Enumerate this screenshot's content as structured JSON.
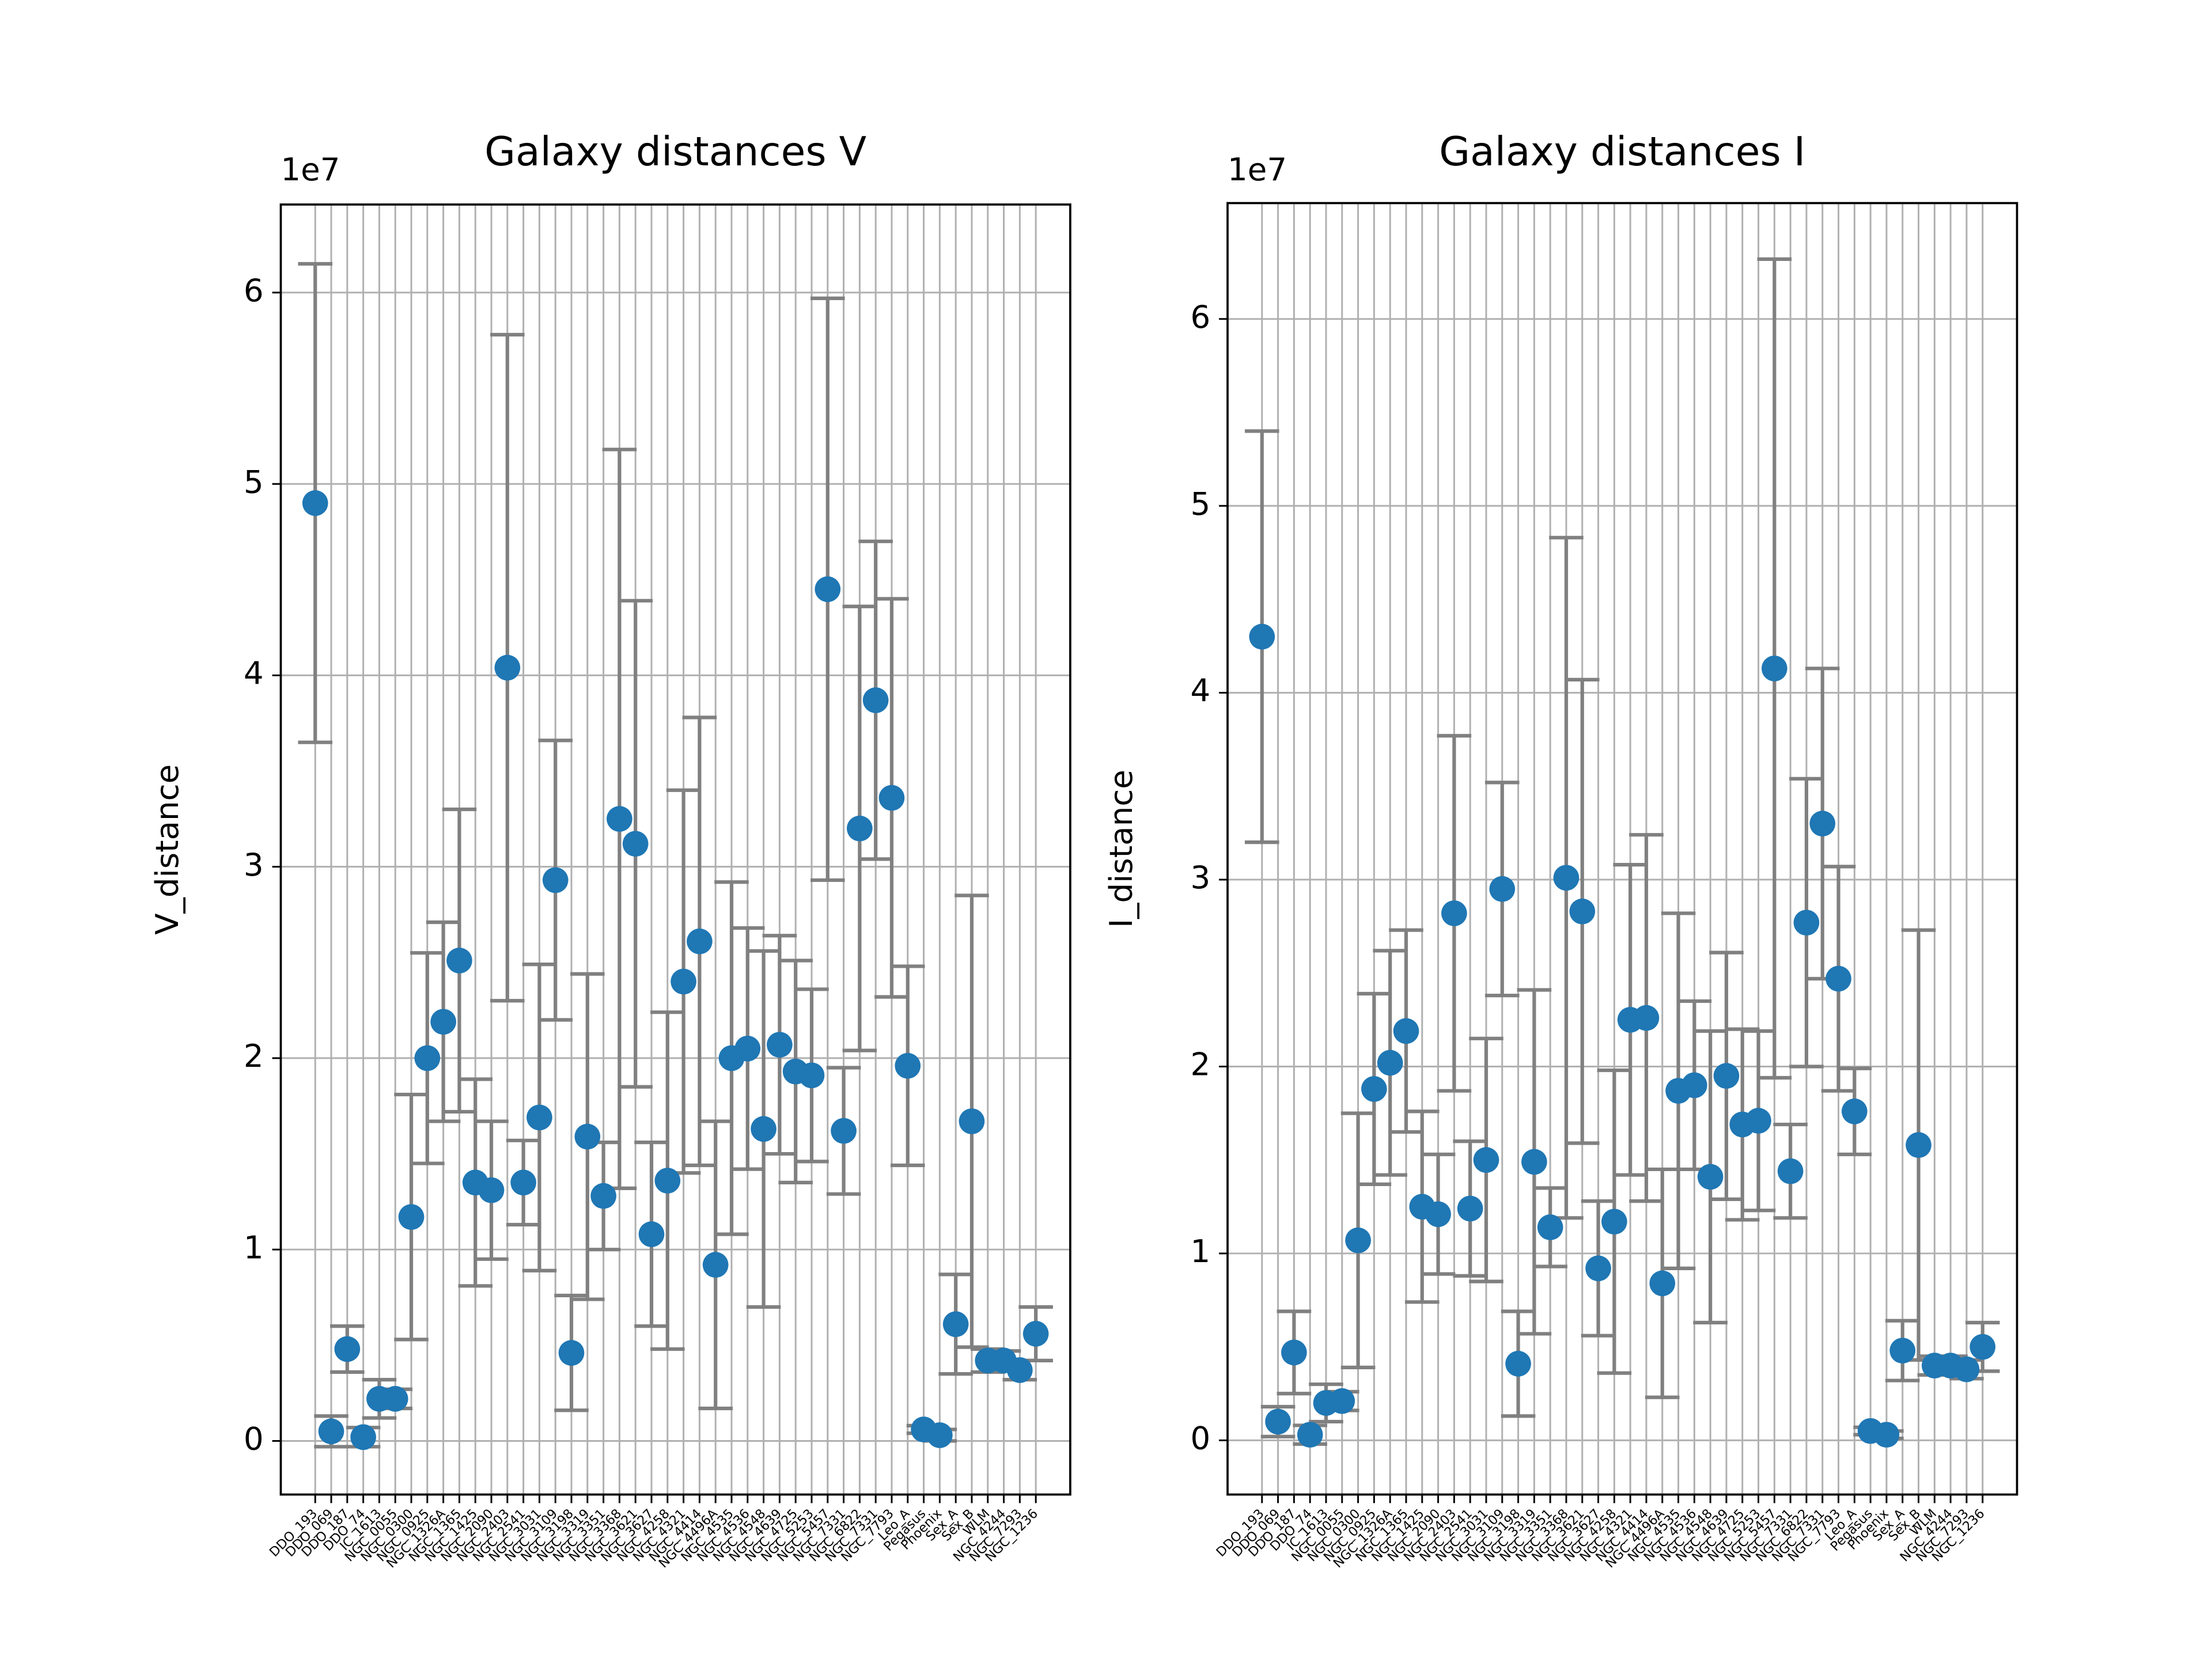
{
  "chart_data": [
    {
      "type": "errorbar",
      "title": "Galaxy distances V",
      "ylabel": "V_distance",
      "offset_label": "1e7",
      "categories": [
        "DDO_193",
        "DDO_069",
        "DDO_187",
        "DDO_74",
        "IC_1613",
        "NGC_0055",
        "NGC_0300",
        "NGC_0925",
        "NGC_1326A",
        "NGC_1365",
        "NGC_1425",
        "NGC_2090",
        "NGC_2403",
        "NGC_2541",
        "NGC_3031",
        "NGC_3109",
        "NGC_3198",
        "NGC_3319",
        "NGC_3351",
        "NGC_3368",
        "NGC_3621",
        "NGC_3627",
        "NGC_4258",
        "NGC_4321",
        "NGC_4414",
        "NGC_4496A",
        "NGC_4535",
        "NGC_4536",
        "NGC_4548",
        "NGC_4639",
        "NGC_4725",
        "NGC_5253",
        "NGC_5457",
        "NGC_7331",
        "NGC_6822",
        "NGC_7331",
        "NGC_7793",
        "Leo_A",
        "Pegasus",
        "Phoenix",
        "Sex_A",
        "Sex_B",
        "WLM",
        "NGC_4244",
        "NGC_7293",
        "NGC_1236"
      ],
      "values": [
        4.9,
        0.05,
        0.48,
        0.02,
        0.22,
        0.22,
        1.17,
        2.0,
        2.19,
        2.51,
        1.35,
        1.31,
        4.04,
        1.35,
        1.69,
        2.93,
        0.46,
        1.59,
        1.28,
        3.25,
        3.12,
        1.08,
        1.36,
        2.4,
        2.61,
        0.92,
        2.0,
        2.05,
        1.63,
        2.07,
        1.93,
        1.91,
        4.45,
        1.62,
        3.2,
        3.87,
        3.36,
        1.96,
        0.06,
        0.03,
        0.61,
        1.67,
        0.42,
        0.42,
        0.37,
        0.56
      ],
      "errors": [
        1.25,
        0.08,
        0.12,
        0.05,
        0.1,
        0.05,
        0.64,
        0.55,
        0.52,
        0.79,
        0.54,
        0.36,
        1.74,
        0.22,
        0.8,
        0.73,
        0.3,
        0.85,
        0.28,
        1.93,
        1.27,
        0.48,
        0.88,
        1.0,
        1.17,
        0.75,
        0.92,
        0.63,
        0.93,
        0.57,
        0.58,
        0.45,
        1.52,
        0.33,
        1.16,
        0.83,
        1.04,
        0.52,
        0.02,
        0.03,
        0.26,
        1.18,
        0.06,
        0.05,
        0.05,
        0.14
      ],
      "color": "#1f77b4",
      "ecolor": "#808080",
      "ylim": [
        -0.28,
        6.46
      ],
      "yticks": [
        0,
        1,
        2,
        3,
        4,
        5,
        6
      ],
      "grid": true
    },
    {
      "type": "errorbar",
      "title": "Galaxy distances I",
      "ylabel": "I_distance",
      "offset_label": "1e7",
      "categories": [
        "DDO_193",
        "DDO_069",
        "DDO_187",
        "DDO_74",
        "IC_1613",
        "NGC_0055",
        "NGC_0300",
        "NGC_0925",
        "NGC_1326A",
        "NGC_1365",
        "NGC_1425",
        "NGC_2090",
        "NGC_2403",
        "NGC_2541",
        "NGC_3031",
        "NGC_3109",
        "NGC_3198",
        "NGC_3319",
        "NGC_3351",
        "NGC_3368",
        "NGC_3621",
        "NGC_3627",
        "NGC_4258",
        "NGC_4321",
        "NGC_4414",
        "NGC_4496A",
        "NGC_4535",
        "NGC_4536",
        "NGC_4548",
        "NGC_4639",
        "NGC_4725",
        "NGC_5253",
        "NGC_5457",
        "NGC_7331",
        "NGC_6822",
        "NGC_7331",
        "NGC_7793",
        "Leo_A",
        "Pegasus",
        "Phoenix",
        "Sex_A",
        "Sex_B",
        "WLM",
        "NGC_4244",
        "NGC_7293",
        "NGC_1236"
      ],
      "values": [
        4.3,
        0.1,
        0.47,
        0.03,
        0.2,
        0.21,
        1.07,
        1.88,
        2.02,
        2.19,
        1.25,
        1.21,
        2.82,
        1.24,
        1.5,
        2.95,
        0.41,
        1.49,
        1.14,
        3.01,
        2.83,
        0.92,
        1.17,
        2.25,
        2.26,
        0.84,
        1.87,
        1.9,
        1.41,
        1.95,
        1.69,
        1.71,
        4.13,
        1.44,
        2.77,
        3.3,
        2.47,
        1.76,
        0.05,
        0.03,
        0.48,
        1.58,
        0.4,
        0.4,
        0.38,
        0.5
      ],
      "errors": [
        1.1,
        0.08,
        0.22,
        0.05,
        0.1,
        0.05,
        0.68,
        0.51,
        0.6,
        0.54,
        0.51,
        0.32,
        0.95,
        0.36,
        0.65,
        0.57,
        0.28,
        0.92,
        0.21,
        1.82,
        1.24,
        0.36,
        0.81,
        0.83,
        0.98,
        0.61,
        0.95,
        0.45,
        0.78,
        0.66,
        0.51,
        0.48,
        2.19,
        0.25,
        0.77,
        0.83,
        0.6,
        0.23,
        0.02,
        0.02,
        0.16,
        1.15,
        0.05,
        0.05,
        0.05,
        0.13
      ],
      "color": "#1f77b4",
      "ecolor": "#808080",
      "ylim": [
        -0.29,
        6.62
      ],
      "yticks": [
        0,
        1,
        2,
        3,
        4,
        5,
        6
      ],
      "grid": true
    }
  ]
}
